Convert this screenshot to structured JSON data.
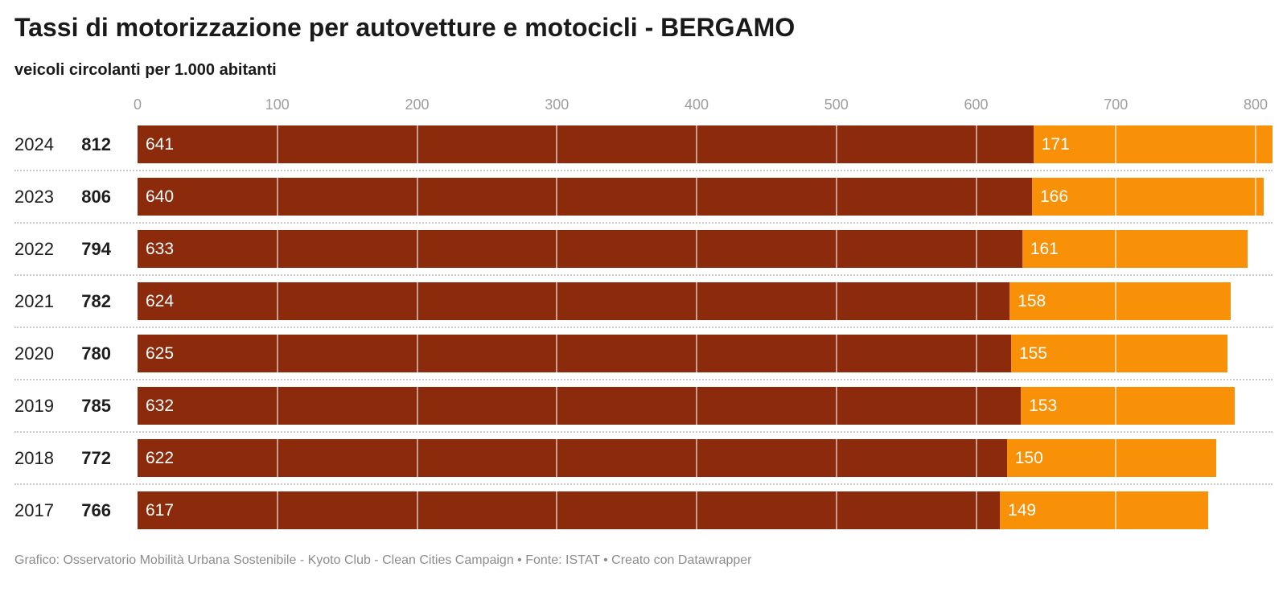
{
  "header": {
    "title": "Tassi di motorizzazione per autovetture e motocicli - BERGAMO",
    "subtitle": "veicoli circolanti per 1.000 abitanti"
  },
  "footer": {
    "text": "Grafico: Osservatorio Mobilità Urbana Sostenibile - Kyoto Club - Clean Cities Campaign • Fonte: ISTAT • Creato con Datawrapper"
  },
  "colors": {
    "autovetture": "#8B2B0C",
    "motocicli": "#F89108",
    "axis_label": "#9E9E9E",
    "separator": "#C9C9C9",
    "bar_value_text": "#FFFFFF",
    "text": "#1A1A1A",
    "footer_text": "#8C8C8C",
    "background": "#FFFFFF"
  },
  "chart_data": {
    "type": "bar",
    "orientation": "horizontal",
    "stacked": true,
    "title": "Tassi di motorizzazione per autovetture e motocicli - BERGAMO",
    "subtitle": "veicoli circolanti per 1.000 abitanti",
    "categories": [
      "2024",
      "2023",
      "2022",
      "2021",
      "2020",
      "2019",
      "2018",
      "2017"
    ],
    "totals": [
      812,
      806,
      794,
      782,
      780,
      785,
      772,
      766
    ],
    "series": [
      {
        "name": "autovetture",
        "color": "#8B2B0C",
        "values": [
          641,
          640,
          633,
          624,
          625,
          632,
          622,
          617
        ]
      },
      {
        "name": "motocicli",
        "color": "#F89108",
        "values": [
          171,
          166,
          161,
          158,
          155,
          153,
          150,
          149
        ]
      }
    ],
    "xlabel": "",
    "ylabel": "",
    "xlim": [
      0,
      800
    ],
    "x_ticks": [
      0,
      100,
      200,
      300,
      400,
      500,
      600,
      700,
      800
    ],
    "grid": "vertical-white-over-bars",
    "legend": "none"
  }
}
